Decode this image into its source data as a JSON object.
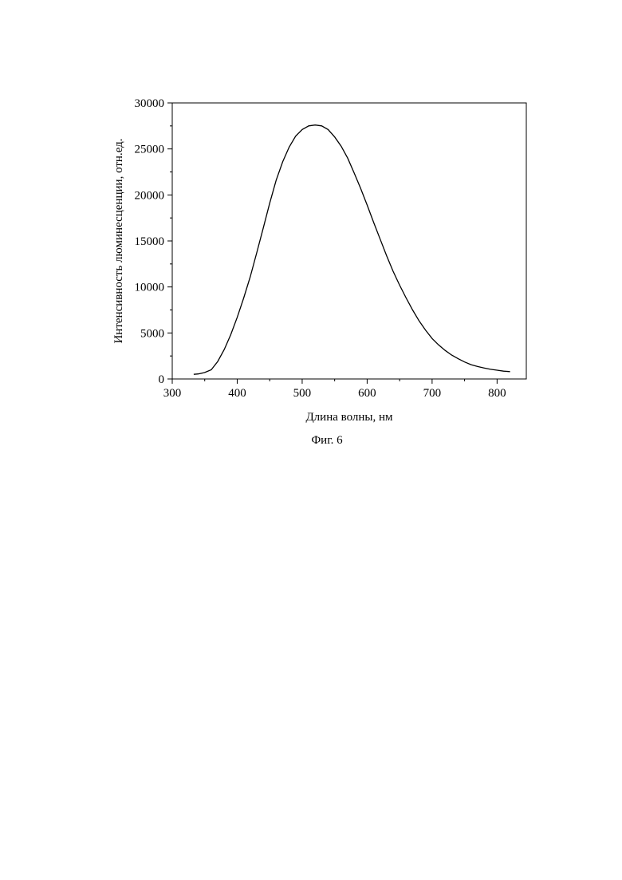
{
  "caption": "Фиг. 6",
  "chart_data": {
    "type": "line",
    "title": "",
    "xlabel": "Длина волны, нм",
    "ylabel": "Интенсивность люминесценции, отн.ед.",
    "xlim": [
      300,
      845
    ],
    "ylim": [
      0,
      30000
    ],
    "xticks": [
      300,
      400,
      500,
      600,
      700,
      800
    ],
    "yticks": [
      0,
      5000,
      10000,
      15000,
      20000,
      25000,
      30000
    ],
    "grid": false,
    "legend": "none",
    "series": [
      {
        "color": "#000000",
        "x": [
          333,
          340,
          350,
          360,
          370,
          380,
          390,
          400,
          410,
          420,
          430,
          440,
          450,
          460,
          470,
          480,
          490,
          500,
          510,
          520,
          530,
          540,
          550,
          560,
          570,
          580,
          590,
          600,
          610,
          620,
          630,
          640,
          650,
          660,
          670,
          680,
          690,
          700,
          710,
          720,
          730,
          740,
          750,
          760,
          770,
          780,
          790,
          800,
          810,
          820
        ],
        "y": [
          500,
          550,
          700,
          1000,
          1900,
          3200,
          4800,
          6700,
          8800,
          11100,
          13700,
          16400,
          19100,
          21600,
          23600,
          25200,
          26400,
          27100,
          27500,
          27600,
          27500,
          27100,
          26300,
          25300,
          24000,
          22400,
          20700,
          18900,
          17000,
          15200,
          13400,
          11700,
          10200,
          8800,
          7500,
          6300,
          5300,
          4400,
          3700,
          3100,
          2600,
          2200,
          1850,
          1550,
          1350,
          1200,
          1050,
          950,
          850,
          800
        ]
      }
    ]
  }
}
